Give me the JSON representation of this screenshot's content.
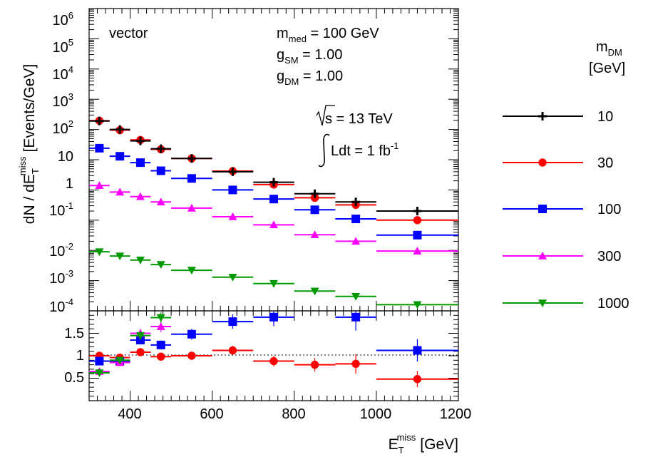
{
  "chart_data": {
    "type": "scatter",
    "title": "",
    "xlabel_main": "E",
    "xlabel_sub": "T",
    "xlabel_sup": "miss",
    "xlabel_unit": "[GeV]",
    "ylabel_pre": "dN / dE",
    "ylabel_sub": "T",
    "ylabel_sup": "miss",
    "ylabel_unit": "[Events/GeV]",
    "xlim": [
      300,
      1200
    ],
    "ylim_top": [
      0.0001,
      1000000
    ],
    "ylim_ratio": [
      0.0,
      2.0
    ],
    "log_y_top": true,
    "grid": false,
    "x_ticks": [
      "400",
      "600",
      "800",
      "1000",
      "1200"
    ],
    "y_ticks_top": [
      {
        "base": "10",
        "exp": "6"
      },
      {
        "base": "10",
        "exp": "5"
      },
      {
        "base": "10",
        "exp": "4"
      },
      {
        "base": "10",
        "exp": "3"
      },
      {
        "base": "10",
        "exp": "2"
      },
      {
        "base": "10",
        "exp": ""
      },
      {
        "base": "1",
        "exp": ""
      },
      {
        "base": "10",
        "exp": "-1"
      },
      {
        "base": "10",
        "exp": "-2"
      },
      {
        "base": "10",
        "exp": "-3"
      },
      {
        "base": "10",
        "exp": "-4"
      }
    ],
    "y_ticks_ratio": [
      "1.5",
      "1",
      "0.5"
    ],
    "bins": [
      [
        300,
        350
      ],
      [
        350,
        400
      ],
      [
        400,
        450
      ],
      [
        450,
        500
      ],
      [
        500,
        600
      ],
      [
        600,
        700
      ],
      [
        700,
        800
      ],
      [
        800,
        900
      ],
      [
        900,
        1000
      ],
      [
        1000,
        1200
      ]
    ],
    "x": [
      325,
      375,
      425,
      475,
      550,
      650,
      750,
      850,
      950,
      1100
    ],
    "series": [
      {
        "name": "10",
        "color": "#000000",
        "marker": "cross",
        "values": [
          190,
          100,
          42,
          23,
          11,
          4.0,
          1.8,
          0.75,
          0.4,
          0.2
        ]
      },
      {
        "name": "30",
        "color": "#ff0000",
        "marker": "circle",
        "values": [
          195,
          95,
          45,
          22,
          11,
          4.2,
          1.5,
          0.55,
          0.32,
          0.1
        ]
      },
      {
        "name": "100",
        "color": "#0000ff",
        "marker": "square",
        "values": [
          24,
          13,
          8,
          4.3,
          2.4,
          1.0,
          0.5,
          0.22,
          0.11,
          0.032
        ]
      },
      {
        "name": "300",
        "color": "#ff00ff",
        "marker": "triangle-up",
        "values": [
          1.4,
          0.85,
          0.6,
          0.4,
          0.25,
          0.13,
          0.07,
          0.033,
          0.02,
          0.0095
        ]
      },
      {
        "name": "1000",
        "color": "#009900",
        "marker": "triangle-down",
        "values": [
          0.009,
          0.0065,
          0.0048,
          0.0034,
          0.0022,
          0.0013,
          0.0008,
          0.00045,
          0.0003,
          0.00016
        ]
      }
    ],
    "ratio_series": [
      {
        "name": "30",
        "color": "#ff0000",
        "marker": "circle",
        "values": [
          1.0,
          0.96,
          1.08,
          0.98,
          1.0,
          1.12,
          0.88,
          0.8,
          0.82,
          0.48
        ],
        "errors": [
          0.06,
          0.06,
          0.07,
          0.07,
          0.07,
          0.1,
          0.12,
          0.15,
          0.22,
          0.18
        ]
      },
      {
        "name": "100",
        "color": "#0000ff",
        "marker": "square",
        "values": [
          0.88,
          0.88,
          1.35,
          1.24,
          1.48,
          1.76,
          1.86,
          null,
          1.86,
          1.12
        ],
        "errors": [
          0.08,
          0.08,
          0.1,
          0.1,
          0.12,
          0.16,
          0.2,
          0,
          0.3,
          0.25
        ]
      },
      {
        "name": "300",
        "color": "#ff00ff",
        "marker": "triangle-up",
        "values": [
          0.65,
          0.85,
          1.5,
          1.65,
          null,
          null,
          null,
          null,
          null,
          null
        ],
        "errors": [
          0.08,
          0.08,
          0.1,
          0.12,
          0,
          0,
          0,
          0,
          0,
          0
        ]
      },
      {
        "name": "1000",
        "color": "#009900",
        "marker": "triangle-down",
        "values": [
          0.62,
          0.9,
          1.45,
          1.85,
          null,
          null,
          null,
          null,
          null,
          null
        ],
        "errors": [
          0.08,
          0.08,
          0.1,
          0.12,
          0,
          0,
          0,
          0,
          0,
          0
        ]
      }
    ],
    "annotations": {
      "model": "vector",
      "mmed_pre": "m",
      "mmed_sub": "med",
      "mmed_val": " = 100 GeV",
      "gsm_pre": "g",
      "gsm_sub": "SM",
      "gsm_val": " = 1.00",
      "gdm_pre": "g",
      "gdm_sub": "DM",
      "gdm_val": " = 1.00",
      "sqrt_s": "s = 13 TeV",
      "lumi_pre": "Ldt = 1 fb",
      "lumi_sup": "-1"
    },
    "legend": {
      "placement": "right",
      "title_pre": "m",
      "title_sub": "DM",
      "title_unit": "[GeV]"
    }
  }
}
